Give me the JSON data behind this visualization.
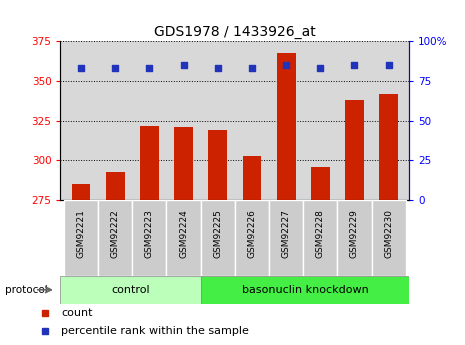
{
  "title": "GDS1978 / 1433926_at",
  "samples": [
    "GSM92221",
    "GSM92222",
    "GSM92223",
    "GSM92224",
    "GSM92225",
    "GSM92226",
    "GSM92227",
    "GSM92228",
    "GSM92229",
    "GSM92230"
  ],
  "counts": [
    285,
    293,
    322,
    321,
    319,
    303,
    368,
    296,
    338,
    342
  ],
  "percentile_ranks": [
    83,
    83,
    83,
    85,
    83,
    83,
    85,
    83,
    85,
    85
  ],
  "ylim_left": [
    275,
    375
  ],
  "ylim_right": [
    0,
    100
  ],
  "yticks_left": [
    275,
    300,
    325,
    350,
    375
  ],
  "yticks_right": [
    0,
    25,
    50,
    75,
    100
  ],
  "ytick_labels_right": [
    "0",
    "25",
    "50",
    "75",
    "100%"
  ],
  "bar_color": "#cc2200",
  "dot_color": "#2233bb",
  "grid_color": "#000000",
  "bg_color": "#d8d8d8",
  "control_color": "#bbffbb",
  "knockdown_color": "#44ee44",
  "control_label": "control",
  "knockdown_label": "basonuclin knockdown",
  "legend_count": "count",
  "legend_pct": "percentile rank within the sample",
  "protocol_label": "protocol"
}
